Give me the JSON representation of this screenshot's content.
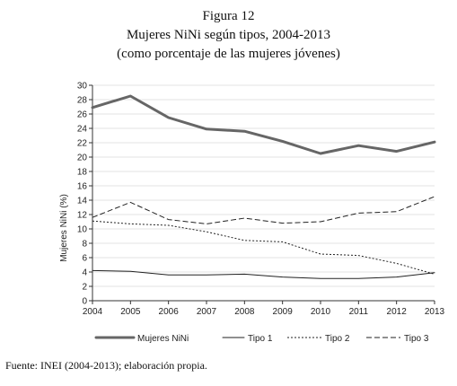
{
  "header": {
    "figure_label": "Figura 12",
    "title": "Mujeres NiNi según tipos, 2004-2013",
    "subtitle": "(como porcentaje de las mujeres jóvenes)"
  },
  "source": "Fuente: INEI (2004-2013); elaboración propia.",
  "chart_data": {
    "type": "line",
    "ylabel": "Mujeres NiNi (%)",
    "xlabel": "",
    "x": [
      2004,
      2005,
      2006,
      2007,
      2008,
      2009,
      2010,
      2011,
      2012,
      2013
    ],
    "xlim": [
      2004,
      2013
    ],
    "ylim": [
      0,
      30
    ],
    "yticks": [
      0,
      2,
      4,
      6,
      8,
      10,
      12,
      14,
      16,
      18,
      20,
      22,
      24,
      26,
      28,
      30
    ],
    "grid": true,
    "legend": "bottom",
    "series": [
      {
        "name": "Mujeres NiNi",
        "style": "thick-solid",
        "color": "#666666",
        "values": [
          26.9,
          28.5,
          25.5,
          23.9,
          23.6,
          22.2,
          20.5,
          21.6,
          20.8,
          22.1
        ]
      },
      {
        "name": "Tipo 1",
        "style": "solid",
        "color": "#222222",
        "values": [
          4.2,
          4.1,
          3.6,
          3.6,
          3.7,
          3.3,
          3.1,
          3.1,
          3.3,
          3.9
        ]
      },
      {
        "name": "Tipo 2",
        "style": "dotted",
        "color": "#222222",
        "values": [
          11.1,
          10.7,
          10.5,
          9.6,
          8.4,
          8.2,
          6.5,
          6.3,
          5.2,
          3.7
        ]
      },
      {
        "name": "Tipo 3",
        "style": "dashed",
        "color": "#222222",
        "values": [
          11.6,
          13.7,
          11.3,
          10.7,
          11.5,
          10.8,
          11.0,
          12.2,
          12.4,
          14.5
        ]
      }
    ]
  }
}
